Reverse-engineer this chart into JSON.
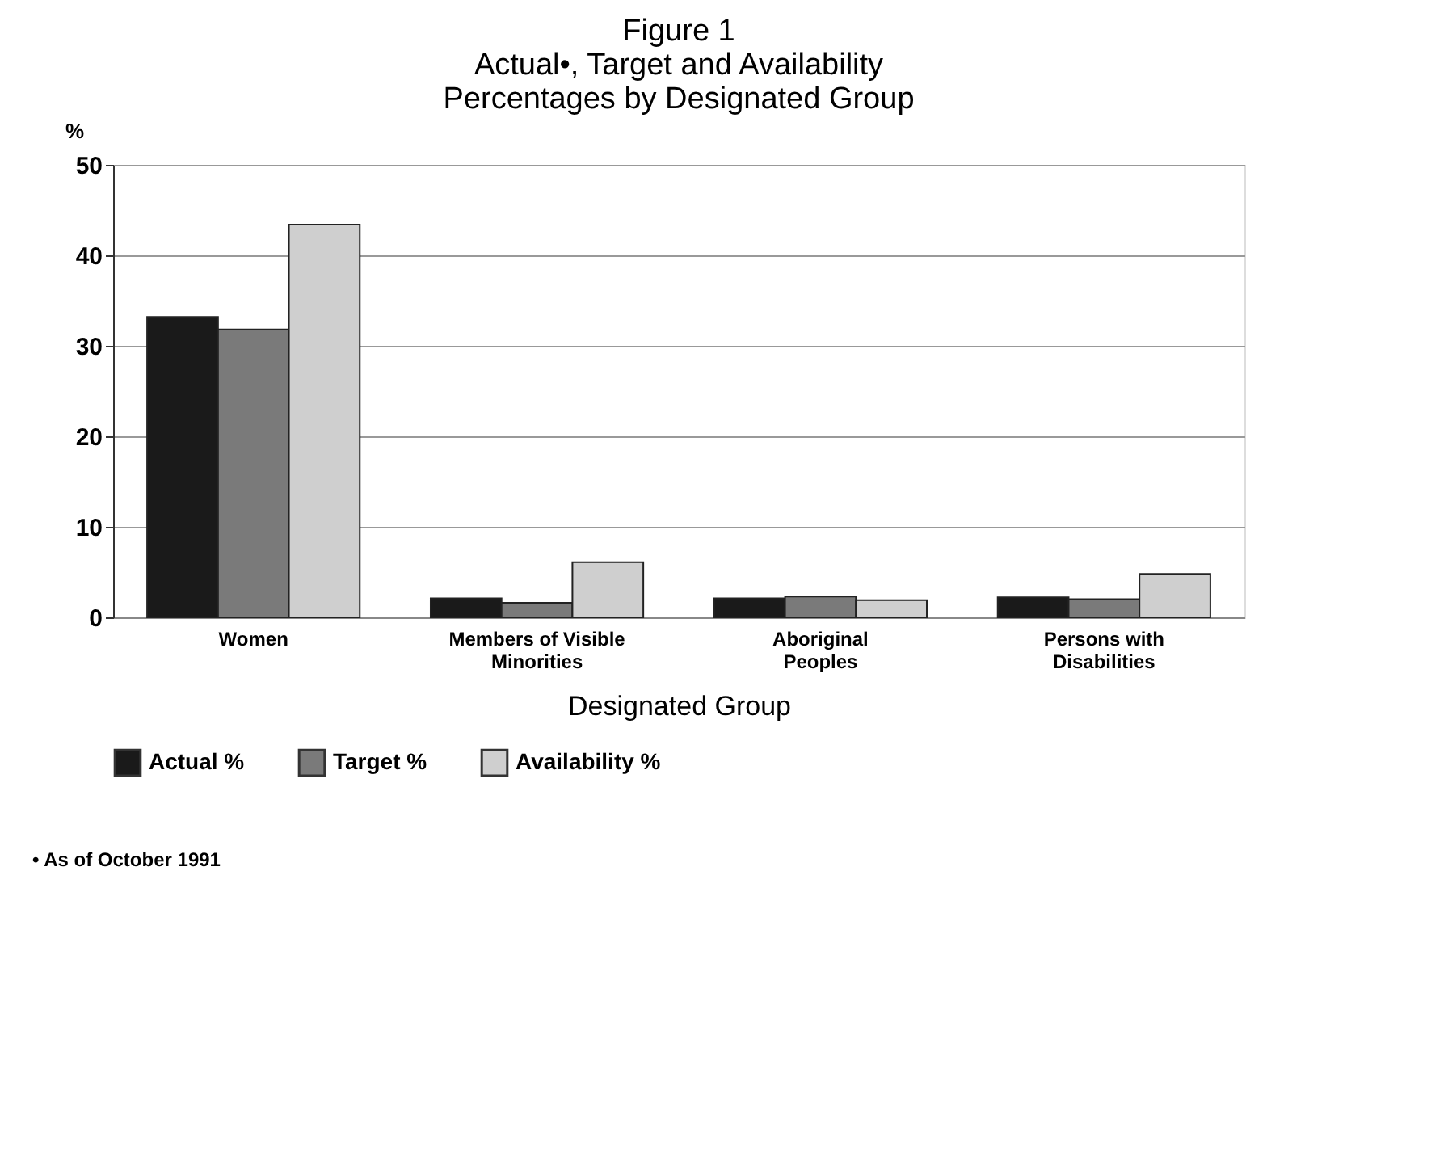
{
  "chart_data": {
    "type": "bar",
    "title": [
      "Figure 1",
      "Actual•, Target and Availability",
      "Percentages by Designated Group"
    ],
    "xlabel": "Designated Group",
    "ylabel": "%",
    "categories": [
      "Women",
      "Members of Visible\nMinorities",
      "Aboriginal\nPeoples",
      "Persons with\nDisabilities"
    ],
    "series": [
      {
        "name": "Actual %",
        "color": "#1a1a1a",
        "values": [
          33.2,
          2.1,
          2.1,
          2.2
        ]
      },
      {
        "name": "Target %",
        "color": "#7a7a7a",
        "values": [
          31.8,
          1.6,
          2.3,
          2.0
        ]
      },
      {
        "name": "Availability %",
        "color": "#cfcfcf",
        "values": [
          43.4,
          6.1,
          1.9,
          4.8
        ]
      }
    ],
    "ylim": [
      0,
      50
    ],
    "yticks": [
      0,
      10,
      20,
      30,
      40,
      50
    ],
    "grid": "y",
    "legend": "bottom",
    "annotations": [
      "• As of October 1991"
    ]
  }
}
